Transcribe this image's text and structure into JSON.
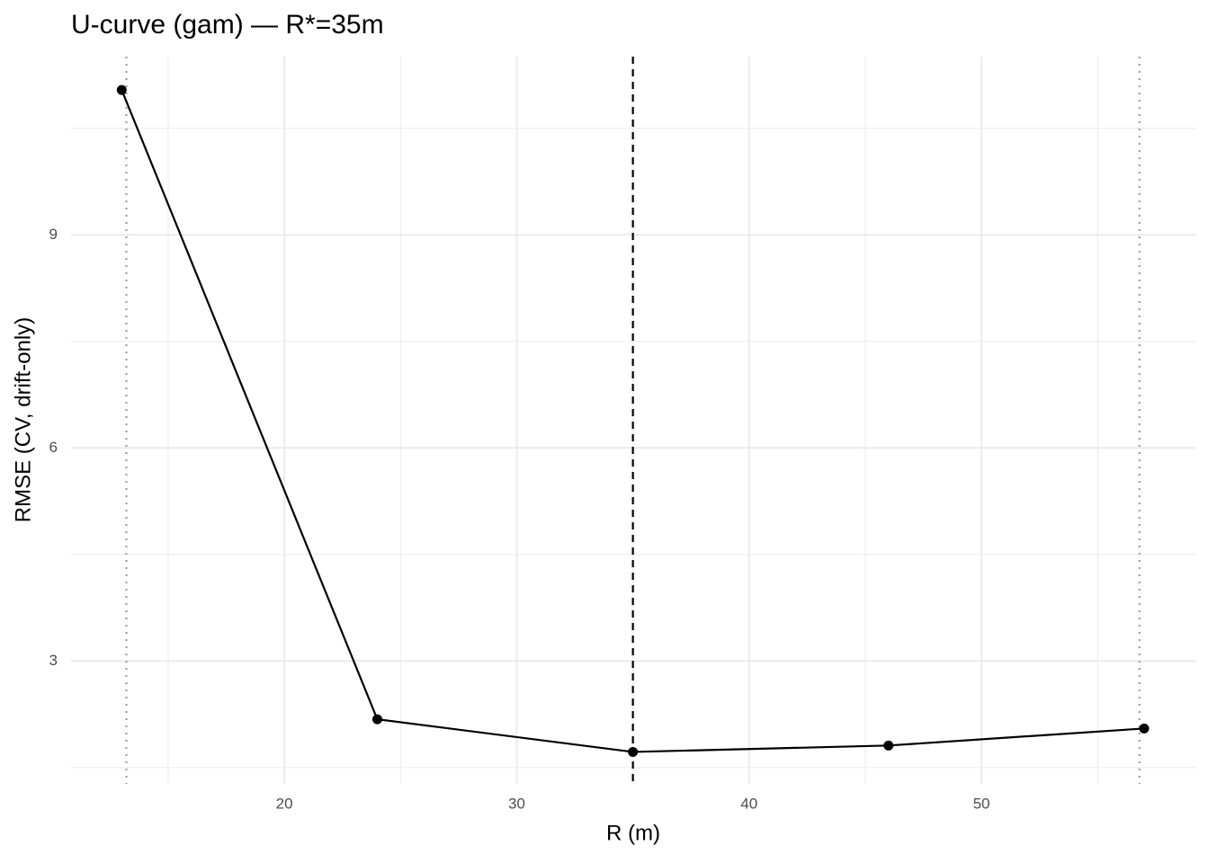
{
  "chart_data": {
    "type": "line",
    "title": "U-curve (gam) — R*=35m",
    "x_label": "R (m)",
    "y_label": "RMSE (CV, drift-only)",
    "x": [
      13,
      24,
      35,
      46,
      57
    ],
    "series": [
      {
        "color": "#000000",
        "values": [
          11.04,
          2.18,
          1.72,
          1.81,
          2.05
        ]
      }
    ],
    "xlim": [
      10.82,
      59.25
    ],
    "xticks": [
      20,
      30,
      40,
      50
    ],
    "xminor": [
      15,
      25,
      35,
      45,
      55
    ],
    "ylim": [
      1.27,
      11.51
    ],
    "yticks": [
      3,
      6,
      9
    ],
    "yminor": [
      1.5,
      4.5,
      7.5,
      10.5
    ],
    "grid": true,
    "vlines": [
      {
        "x": 13.2,
        "style": "dotted",
        "color": "#9e9e9e"
      },
      {
        "x": 35,
        "style": "dashed",
        "color": "#000000"
      },
      {
        "x": 56.8,
        "style": "dotted",
        "color": "#9e9e9e"
      }
    ]
  }
}
